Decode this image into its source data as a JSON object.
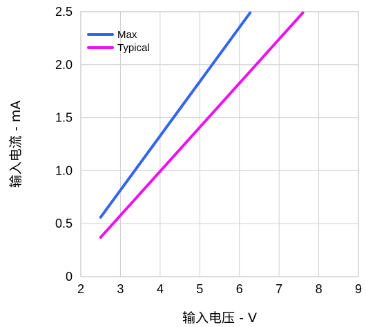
{
  "chart_data": {
    "type": "line",
    "xlabel": "输入电压 - V",
    "ylabel": "输入电流 - mA",
    "xlim": [
      2,
      9
    ],
    "ylim": [
      0,
      2.5
    ],
    "x_ticks": [
      "2",
      "3",
      "4",
      "5",
      "6",
      "7",
      "8",
      "9"
    ],
    "y_ticks": [
      "0",
      "0.5",
      "1.0",
      "1.5",
      "2.0",
      "2.5"
    ],
    "grid": true,
    "legend_position": "top-left",
    "series": [
      {
        "name": "Max",
        "color": "#3366ee",
        "points": [
          [
            2.5,
            0.56
          ],
          [
            6.27,
            2.49
          ]
        ]
      },
      {
        "name": "Typical",
        "color": "#ee11ee",
        "points": [
          [
            2.5,
            0.37
          ],
          [
            7.6,
            2.49
          ]
        ]
      }
    ]
  }
}
